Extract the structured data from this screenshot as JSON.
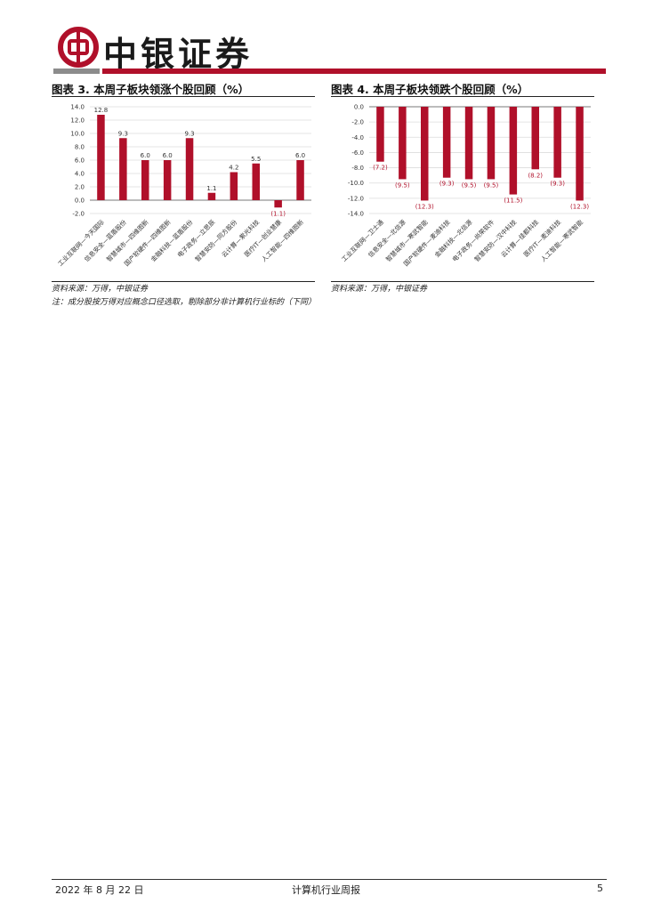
{
  "brand": {
    "name": "中银证券",
    "primary_color": "#b0102a",
    "secondary_color": "#8c8c8c"
  },
  "left_figure": {
    "title": "图表 3. 本周子板块领涨个股回顾（%）",
    "source": "资料来源：万得，中银证券",
    "note": "注：成分股按万得对应概念口径选取，剔除部分非计算机行业标的（下同）"
  },
  "right_figure": {
    "title": "图表 4. 本周子板块领跌个股回顾（%）",
    "source": "资料来源：万得，中银证券"
  },
  "footer": {
    "date": "2022 年 8 月 22 日",
    "report_name": "计算机行业周报",
    "page_number": "5"
  },
  "chart_data": [
    {
      "type": "bar",
      "categories": [
        "工业互联网—今天国际",
        "信息安全—蓝盾股份",
        "智慧城市—四维图新",
        "国产软硬件—四维图新",
        "金融科技—蓝盾股份",
        "电子政务—立思辰",
        "智慧安防—同方股份",
        "云计算—紫光科技",
        "医疗IT—创业慧康",
        "人工智能—四维图新"
      ],
      "values": [
        12.8,
        9.3,
        6.0,
        6.0,
        9.3,
        1.1,
        4.2,
        5.5,
        -1.1,
        6.0
      ],
      "data_labels": [
        "12.8",
        "9.3",
        "6.0",
        "6.0",
        "9.3",
        "1.1",
        "4.2",
        "5.5",
        "(1.1)",
        "6.0"
      ],
      "y_ticks": [
        "14.0",
        "12.0",
        "10.0",
        "8.0",
        "6.0",
        "4.0",
        "2.0",
        "0.0",
        "-2.0"
      ],
      "ylim": [
        -2,
        14
      ],
      "grid": true,
      "bar_color": "#b0102a"
    },
    {
      "type": "bar",
      "categories": [
        "工业互联网—卫士通",
        "信息安全—北信源",
        "智慧城市—寒武智能",
        "国产软硬件—麦迪科技",
        "金融科技—北信源",
        "电子政务—尚荣软件",
        "智慧安防—汉中科技",
        "云计算—佳都科技",
        "医疗IT—麦迪科技",
        "人工智能—寒武智能"
      ],
      "values": [
        -7.2,
        -9.5,
        -12.3,
        -9.3,
        -9.5,
        -9.5,
        -11.5,
        -8.2,
        -9.3,
        -12.3
      ],
      "data_labels": [
        "(7.2)",
        "(9.5)",
        "(12.3)",
        "(9.3)",
        "(9.5)",
        "(9.5)",
        "(11.5)",
        "(8.2)",
        "(9.3)",
        "(12.3)"
      ],
      "y_ticks": [
        "0.0",
        "-2.0",
        "-4.0",
        "-6.0",
        "-8.0",
        "-10.0",
        "-12.0",
        "-14.0"
      ],
      "ylim": [
        -14,
        0
      ],
      "grid": true,
      "bar_color": "#b0102a"
    }
  ]
}
